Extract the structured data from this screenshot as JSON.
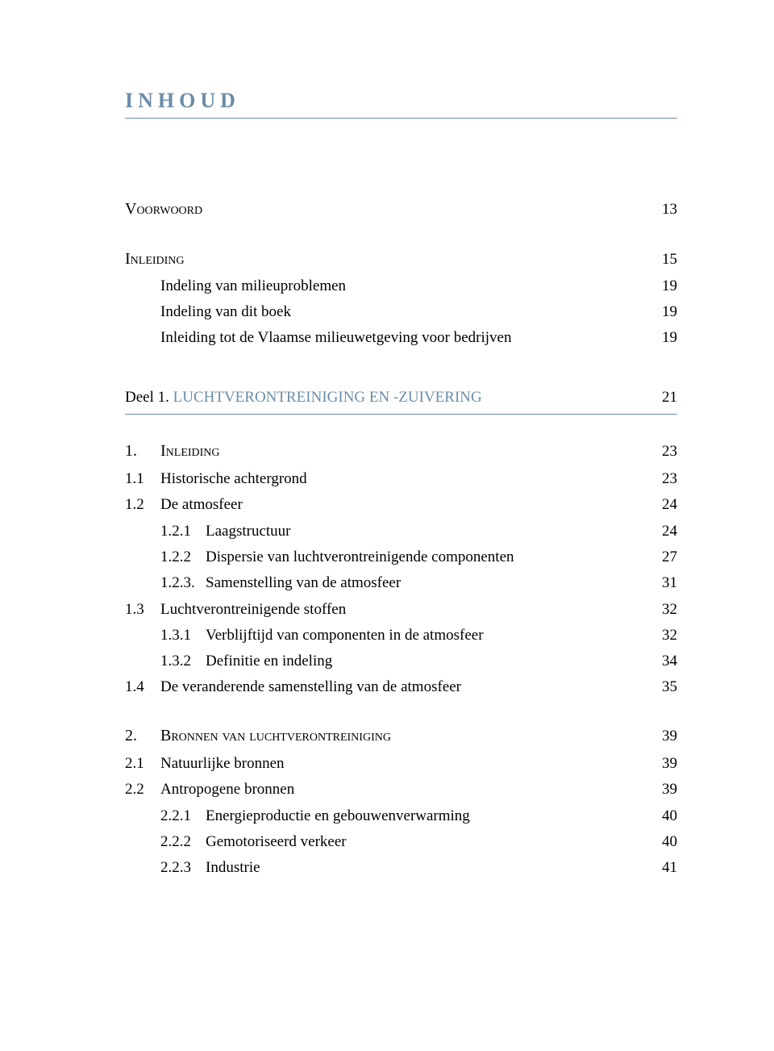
{
  "page_title": "INHOUD",
  "colors": {
    "accent": "#6b8ca8",
    "text": "#000000",
    "background": "#ffffff"
  },
  "sections": {
    "voorwoord": {
      "label": "Voorwoord",
      "page": "13"
    },
    "inleiding": {
      "label": "Inleiding",
      "page": "15",
      "items": [
        {
          "label": "Indeling van milieuproblemen",
          "page": "19"
        },
        {
          "label": "Indeling van dit boek",
          "page": "19"
        },
        {
          "label": "Inleiding tot de Vlaamse milieuwetgeving voor bedrijven",
          "page": "19"
        }
      ]
    },
    "part1": {
      "prefix": "Deel 1.",
      "title": "LUCHTVERONTREINIGING EN -ZUIVERING",
      "page": "21"
    },
    "chapter1": {
      "num": "1.",
      "title": "Inleiding",
      "page": "23",
      "items": [
        {
          "num": "1.1",
          "label": "Historische achtergrond",
          "page": "23"
        },
        {
          "num": "1.2",
          "label": "De atmosfeer",
          "page": "24"
        },
        {
          "num": "1.2.1",
          "label": "Laagstructuur",
          "page": "24",
          "sub": true
        },
        {
          "num": "1.2.2",
          "label": "Dispersie van luchtverontreinigende componenten",
          "page": "27",
          "sub": true
        },
        {
          "num": "1.2.3.",
          "label": "Samenstelling van de atmosfeer",
          "page": "31",
          "sub": true
        },
        {
          "num": "1.3",
          "label": "Luchtverontreinigende stoffen",
          "page": "32"
        },
        {
          "num": "1.3.1",
          "label": "Verblijftijd van componenten in de atmosfeer",
          "page": "32",
          "sub": true
        },
        {
          "num": "1.3.2",
          "label": "Definitie en indeling",
          "page": "34",
          "sub": true
        },
        {
          "num": "1.4",
          "label": "De veranderende samenstelling van de atmosfeer",
          "page": "35"
        }
      ]
    },
    "chapter2": {
      "num": "2.",
      "title": "Bronnen van luchtverontreiniging",
      "page": "39",
      "items": [
        {
          "num": "2.1",
          "label": "Natuurlijke bronnen",
          "page": "39"
        },
        {
          "num": "2.2",
          "label": "Antropogene bronnen",
          "page": "39"
        },
        {
          "num": "2.2.1",
          "label": "Energieproductie en gebouwenverwarming",
          "page": "40",
          "sub": true
        },
        {
          "num": "2.2.2",
          "label": "Gemotoriseerd verkeer",
          "page": "40",
          "sub": true
        },
        {
          "num": "2.2.3",
          "label": "Industrie",
          "page": "41",
          "sub": true
        }
      ]
    }
  }
}
